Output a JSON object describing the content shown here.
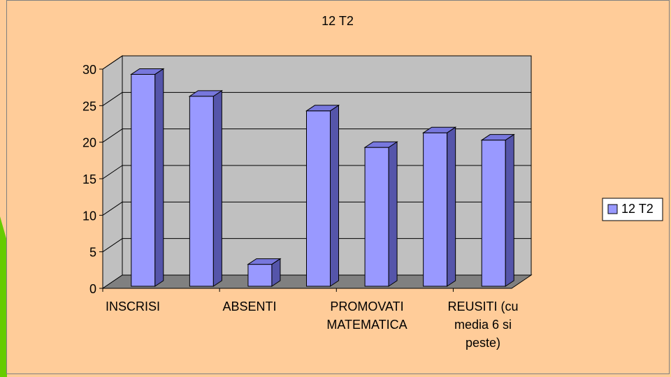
{
  "chart_data": {
    "type": "bar",
    "title": "12 T2",
    "categories": [
      "INSCRISI",
      "",
      "ABSENTI",
      "",
      "PROMOVATI MATEMATICA",
      "",
      "REUSITI (cu media 6 si peste)"
    ],
    "category_labels": [
      {
        "lines": [
          "INSCRISI"
        ]
      },
      {
        "lines": [
          "ABSENTI"
        ]
      },
      {
        "lines": [
          "PROMOVATI",
          "MATEMATICA"
        ]
      },
      {
        "lines": [
          "REUSITI (cu",
          "media 6 si",
          "peste)"
        ]
      }
    ],
    "series": [
      {
        "name": "12 T2",
        "values": [
          29,
          26,
          3,
          24,
          19,
          21,
          20
        ]
      }
    ],
    "ylim": [
      0,
      30
    ],
    "yticks": [
      "0",
      "5",
      "10",
      "15",
      "20",
      "25",
      "30"
    ],
    "grid": true,
    "legend_position": "right",
    "three_d": true,
    "colors": {
      "background": "#ffcc99",
      "wall": "#c0c0c0",
      "floor": "#808080",
      "bar_front": "#9999ff",
      "bar_top": "#7777dd",
      "bar_side": "#5555aa",
      "border": "#000000",
      "accent_left": "#66cc00"
    }
  }
}
